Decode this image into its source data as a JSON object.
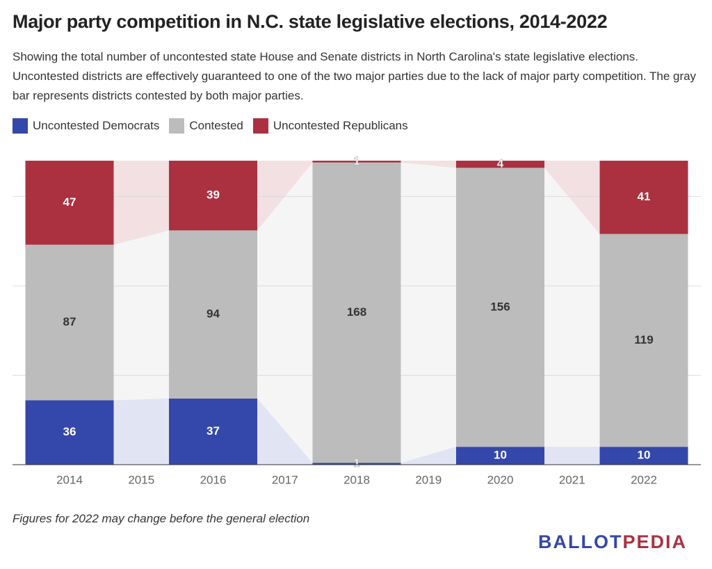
{
  "chart_data": {
    "type": "stacked-bar",
    "title": "Major party competition in N.C. state legislative elections, 2014-2022",
    "subtitle": "Showing the total number of uncontested state House and Senate districts in North Carolina's state legislative elections. Uncontested districts are effectively guaranteed to one of the two major parties due to the lack of major party competition. The gray bar represents districts contested by both major parties.",
    "categories": [
      "2014",
      "2015",
      "2016",
      "2017",
      "2018",
      "2019",
      "2020",
      "2021",
      "2022"
    ],
    "series": [
      {
        "name": "Uncontested Democrats",
        "color": "#3447aa",
        "values": [
          36,
          null,
          37,
          null,
          1,
          null,
          10,
          null,
          10
        ]
      },
      {
        "name": "Contested",
        "color": "#bcbcbc",
        "values": [
          87,
          null,
          94,
          null,
          168,
          null,
          156,
          null,
          119
        ]
      },
      {
        "name": "Uncontested Republicans",
        "color": "#ab3140",
        "values": [
          47,
          null,
          39,
          null,
          1,
          null,
          4,
          null,
          41
        ]
      }
    ],
    "ylim": [
      0,
      170
    ],
    "yticks": [
      0,
      50,
      100,
      150
    ],
    "grid": true,
    "note": "Figures for 2022 may change before the general election",
    "logo": [
      "BALLOT",
      "PEDIA"
    ]
  }
}
